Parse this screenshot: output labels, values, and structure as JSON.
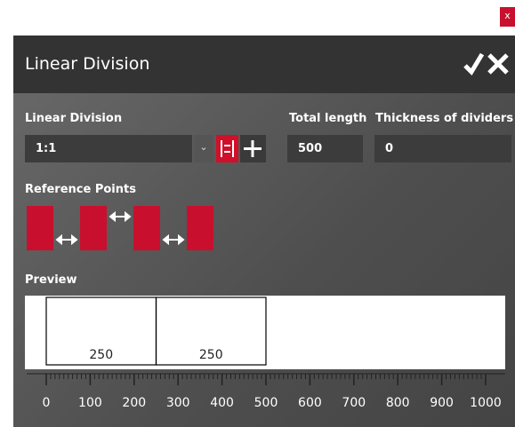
{
  "close_button": "x",
  "dialog": {
    "title": "Linear Division"
  },
  "fields": {
    "division": {
      "label": "Linear Division",
      "value": "1:1"
    },
    "total_length": {
      "label": "Total length",
      "value": "500"
    },
    "thickness": {
      "label": "Thickness of dividers",
      "value": "0"
    }
  },
  "reference_points": {
    "label": "Reference Points"
  },
  "preview": {
    "label": "Preview",
    "segments": [
      250,
      250
    ]
  },
  "ruler": {
    "labels": [
      0,
      100,
      200,
      300,
      400,
      500,
      600,
      700,
      800,
      900,
      1000
    ]
  }
}
